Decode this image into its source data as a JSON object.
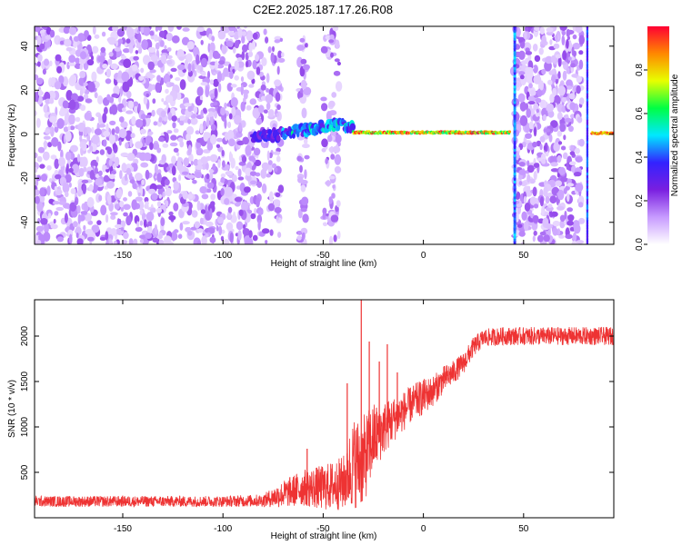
{
  "figure_title": "C2E2.2025.187.17.26.R08",
  "chart_data": [
    {
      "type": "heatmap",
      "title": "",
      "xlabel": "Height of straight line (km)",
      "ylabel": "Frequency (Hz)",
      "xlim": [
        -194,
        95
      ],
      "ylim": [
        -50,
        49
      ],
      "xticks": [
        -150,
        -100,
        -50,
        0,
        50
      ],
      "yticks": [
        -40,
        -20,
        0,
        20,
        40
      ],
      "grid": false,
      "colorbar": {
        "label": "Normalized spectral amplitude",
        "range": [
          0,
          1
        ],
        "ticks": [
          0.0,
          0.2,
          0.4,
          0.6,
          0.8
        ],
        "colormap": [
          "#ffffff",
          "#c79bff",
          "#7a1fe0",
          "#3322ff",
          "#00e8ff",
          "#00ff44",
          "#e8ff00",
          "#ff8800",
          "#ff0033"
        ]
      },
      "regions": [
        {
          "x_range": [
            -194,
            -80
          ],
          "content": "noise, frequency -50 to 49"
        },
        {
          "x_range": [
            -85,
            -35
          ],
          "content": "signal ridge, frequency -2 to 5"
        },
        {
          "x_range": [
            -35,
            43
          ],
          "content": "narrow line at frequency 0, amplitude 0.6 to 1.0"
        },
        {
          "x_range": [
            45,
            80
          ],
          "content": "noise, frequency -50 to 49"
        },
        {
          "x_range": [
            84,
            95
          ],
          "content": "narrow line at frequency 0"
        }
      ]
    },
    {
      "type": "line",
      "title": "",
      "xlabel": "Height of straight line (km)",
      "ylabel": "SNR (10 * v/v)",
      "xlim": [
        -194,
        95
      ],
      "ylim": [
        0,
        2400
      ],
      "xticks": [
        -150,
        -100,
        -50,
        0,
        50
      ],
      "yticks": [
        500,
        1000,
        1500,
        2000
      ],
      "grid": false,
      "series": [
        {
          "color": "#ee3333",
          "x": [
            -194,
            -150,
            -100,
            -80,
            -70,
            -60,
            -50,
            -40,
            -35,
            -30,
            -25,
            -20,
            -15,
            -10,
            -5,
            0,
            5,
            10,
            15,
            20,
            25,
            30,
            40,
            50,
            60,
            70,
            80,
            90,
            95
          ],
          "values": [
            180,
            180,
            180,
            190,
            260,
            330,
            330,
            380,
            600,
            620,
            870,
            980,
            1080,
            1170,
            1270,
            1330,
            1400,
            1520,
            1600,
            1700,
            1880,
            1980,
            2000,
            2000,
            2000,
            2000,
            2000,
            2000,
            2000
          ],
          "noise_amplitude": [
            60,
            60,
            60,
            70,
            150,
            200,
            250,
            300,
            500,
            500,
            400,
            300,
            250,
            220,
            200,
            200,
            170,
            150,
            130,
            120,
            110,
            100,
            100,
            100,
            100,
            100,
            100,
            100,
            100
          ],
          "peaks": [
            {
              "x": -58,
              "y": 760
            },
            {
              "x": -38,
              "y": 1480
            },
            {
              "x": -31,
              "y": 2400
            },
            {
              "x": -27,
              "y": 1940
            },
            {
              "x": -22,
              "y": 1720
            },
            {
              "x": -18,
              "y": 1910
            },
            {
              "x": -13,
              "y": 1600
            }
          ]
        }
      ]
    }
  ]
}
